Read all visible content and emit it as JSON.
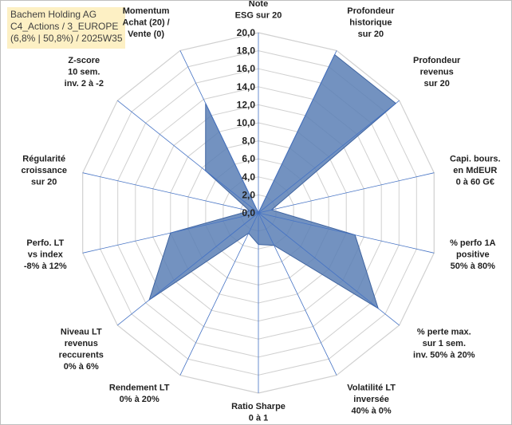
{
  "header": {
    "company": "Bachem Holding AG",
    "line2": "C4_Actions / 3_EUROPE",
    "line3": "(6,8% | 50,8%) / 2025W35"
  },
  "colors": {
    "fill": "#5b7fb5",
    "fill_stroke": "#3f64a0",
    "spoke": "#4472c4",
    "grid": "#d0d0d0"
  },
  "chart_data": {
    "type": "radar",
    "rmax": 20,
    "ticks": [
      "0,0",
      "2,0",
      "4,0",
      "6,0",
      "8,0",
      "10,0",
      "12,0",
      "14,0",
      "16,0",
      "18,0",
      "20,0"
    ],
    "tick_values": [
      0,
      2,
      4,
      6,
      8,
      10,
      12,
      14,
      16,
      18,
      20
    ],
    "grid": true,
    "axes": [
      {
        "label": [
          "Note",
          "ESG sur 20"
        ],
        "value": 0
      },
      {
        "label": [
          "Profondeur",
          "historique",
          "sur 20"
        ],
        "value": 19.5
      },
      {
        "label": [
          "Profondeur",
          "revenus",
          "sur 20"
        ],
        "value": 19.5
      },
      {
        "label": [
          "Capi. bours.",
          "en MdEUR",
          "0 à 60 G€"
        ],
        "value": 1.5
      },
      {
        "label": [
          "% perfo 1A",
          "positive",
          "50% à 80%"
        ],
        "value": 11
      },
      {
        "label": [
          "% perte max.",
          "sur 1 sem.",
          "inv. 50% à 20%"
        ],
        "value": 17
      },
      {
        "label": [
          "Volatilité LT",
          "inversée",
          "40% à 0%"
        ],
        "value": 4
      },
      {
        "label": [
          "Ratio Sharpe",
          "0 à 1"
        ],
        "value": 3.5
      },
      {
        "label": [
          "Rendement LT",
          "0% à 20%"
        ],
        "value": 2.5
      },
      {
        "label": [
          "Niveau LT",
          "revenus",
          "reccurents",
          "0% à 6%"
        ],
        "value": 15.5
      },
      {
        "label": [
          "Perfo. LT",
          "vs index",
          "-8% à 12%"
        ],
        "value": 10
      },
      {
        "label": [
          "Régularité",
          "croissance",
          "sur 20"
        ],
        "value": 1
      },
      {
        "label": [
          "Z-score",
          "10 sem.",
          "inv. 2 à -2"
        ],
        "value": 7.5
      },
      {
        "label": [
          "Momentum",
          "Achat (20) /",
          "Vente (0)"
        ],
        "value": 13.5
      }
    ]
  }
}
